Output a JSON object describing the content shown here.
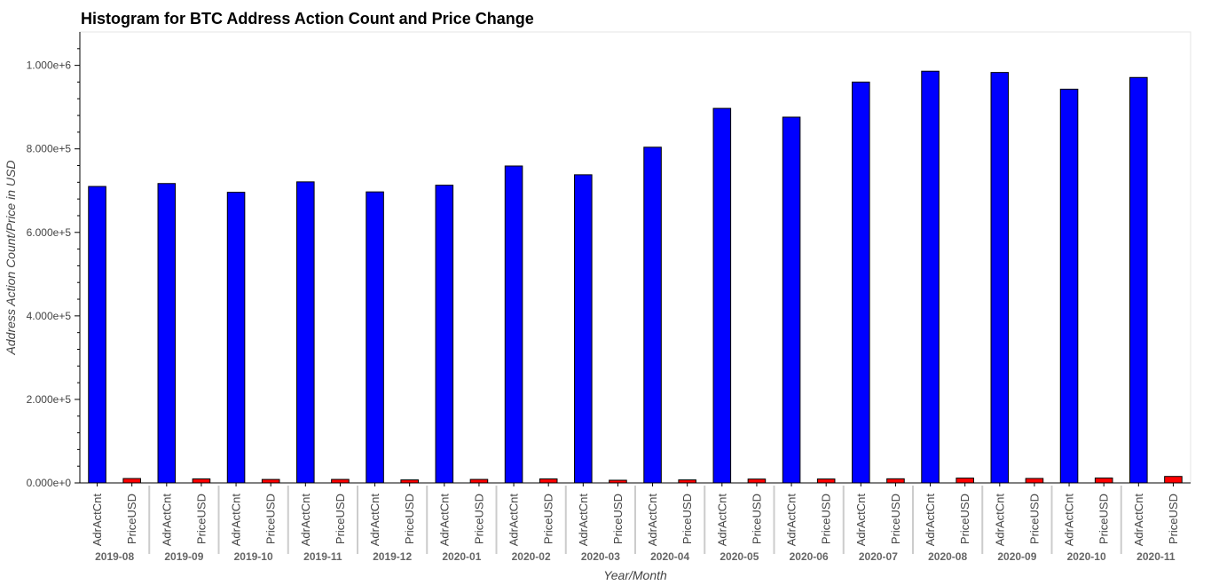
{
  "chart_data": {
    "type": "bar",
    "title": "Histogram for BTC Address Action Count and Price Change",
    "xlabel": "Year/Month",
    "ylabel": "Address Action Count/Price in USD",
    "ylim": [
      0,
      1080000
    ],
    "y_ticks": [
      {
        "value": 0,
        "label": "0.000e+0"
      },
      {
        "value": 200000,
        "label": "2.000e+5"
      },
      {
        "value": 400000,
        "label": "4.000e+5"
      },
      {
        "value": 600000,
        "label": "6.000e+5"
      },
      {
        "value": 800000,
        "label": "8.000e+5"
      },
      {
        "value": 1000000,
        "label": "1.000e+6"
      }
    ],
    "categories": [
      "2019-08",
      "2019-09",
      "2019-10",
      "2019-11",
      "2019-12",
      "2020-01",
      "2020-02",
      "2020-03",
      "2020-04",
      "2020-05",
      "2020-06",
      "2020-07",
      "2020-08",
      "2020-09",
      "2020-10",
      "2020-11"
    ],
    "series": [
      {
        "name": "AdrActCnt",
        "color": "#0000ff",
        "values": [
          710000,
          717000,
          696000,
          721000,
          697000,
          713000,
          759000,
          738000,
          804000,
          897000,
          876000,
          960000,
          986000,
          983000,
          943000,
          971000
        ]
      },
      {
        "name": "PriceUSD",
        "color": "#ff0000",
        "values": [
          10500,
          9600,
          8300,
          8400,
          7200,
          8400,
          9600,
          6400,
          7200,
          9200,
          9400,
          9900,
          11600,
          10700,
          11800,
          15500
        ]
      }
    ],
    "grid": false,
    "legend": "none",
    "colors": {
      "outline": "#000000",
      "axis": "#000000",
      "separator": "#cccccc",
      "frame": "#e5e5e5"
    }
  }
}
